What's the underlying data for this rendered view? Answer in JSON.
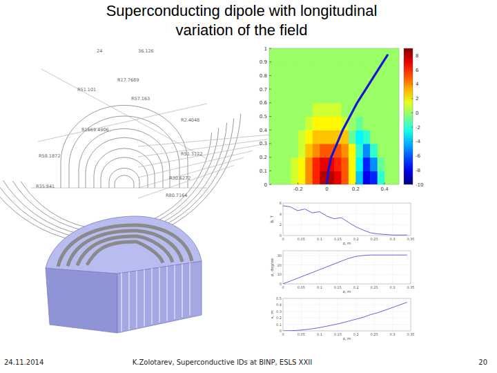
{
  "title": "Superconducting dipole with longitudinal variation of the field",
  "footer": {
    "date": "24.11.2014",
    "author": "K.Zolotarev, Superconductive IDs at BINP, ESLS XXII",
    "page": "20"
  },
  "drawing_labels": [
    "24",
    "36.126",
    "R17.7689",
    "R51.101",
    "R57.163",
    "R1669.4906",
    "R2.4048",
    "R58.1872",
    "R51.3122",
    "R30.6272",
    "R35.841",
    "R80.7164"
  ],
  "chart_data": [
    {
      "type": "heatmap",
      "xlim": [
        -0.4,
        0.5
      ],
      "ylim": [
        0,
        1
      ],
      "xticks": [
        -0.2,
        0,
        0.2,
        0.4
      ],
      "yticks": [
        0,
        0.1,
        0.2,
        0.3,
        0.4,
        0.5,
        0.6,
        0.7,
        0.8,
        0.9,
        1
      ],
      "x_edges": [
        -0.4,
        -0.35,
        -0.3,
        -0.25,
        -0.2,
        -0.15,
        -0.1,
        -0.05,
        0,
        0.05,
        0.1,
        0.15,
        0.2,
        0.25,
        0.3,
        0.35,
        0.4,
        0.45,
        0.5
      ],
      "y_edges": [
        0,
        0.1,
        0.2,
        0.3,
        0.4,
        0.5,
        0.6,
        0.7,
        0.8,
        0.9,
        1
      ],
      "cells": [
        [
          0,
          0,
          0,
          1,
          2,
          4,
          6,
          8,
          8,
          7,
          5,
          2,
          -4,
          -8,
          -7,
          -2,
          0,
          0
        ],
        [
          0,
          0,
          0,
          1,
          2,
          4,
          6,
          7,
          7,
          6,
          5,
          2,
          -3,
          -7,
          -5,
          -1,
          0,
          0
        ],
        [
          0,
          0,
          0,
          0,
          1,
          3,
          4,
          5,
          5,
          5,
          4,
          2,
          -2,
          -5,
          -2,
          0,
          0,
          0
        ],
        [
          0,
          0,
          0,
          0,
          1,
          2,
          3,
          3,
          3,
          3,
          3,
          -1,
          -3,
          -2,
          0,
          0,
          0,
          0
        ],
        [
          0,
          0,
          0,
          0,
          0,
          1,
          2,
          2,
          2,
          2,
          1,
          0,
          -1,
          0,
          0,
          0,
          0,
          0
        ],
        [
          0,
          0,
          0,
          0,
          0,
          0,
          1,
          1,
          1,
          1,
          0,
          0,
          0,
          0,
          0,
          0,
          0,
          0
        ],
        [
          0,
          0,
          0,
          0,
          0,
          0,
          0,
          0,
          0,
          0,
          0,
          0,
          0,
          0,
          0,
          0,
          0,
          0
        ],
        [
          0,
          0,
          0,
          0,
          0,
          0,
          0,
          0,
          0,
          0,
          0,
          0,
          0,
          0,
          0,
          0,
          0,
          0
        ],
        [
          0,
          0,
          0,
          0,
          0,
          0,
          0,
          0,
          0,
          0,
          0,
          0,
          0,
          0,
          0,
          0,
          0,
          0
        ],
        [
          0,
          0,
          0,
          0,
          0,
          0,
          0,
          0,
          0,
          0,
          0,
          0,
          0,
          0,
          0,
          0,
          0,
          0
        ]
      ],
      "colorbar": {
        "range": [
          -10,
          9
        ],
        "ticks": [
          8,
          6,
          4,
          2,
          0,
          -2,
          -4,
          -6,
          -8,
          -10
        ]
      },
      "trajectory": {
        "color": "#1414d8",
        "x": [
          0,
          0.01,
          0.03,
          0.07,
          0.11,
          0.16,
          0.21,
          0.27,
          0.33,
          0.39,
          0.42
        ],
        "y": [
          0,
          0.1,
          0.2,
          0.3,
          0.4,
          0.5,
          0.6,
          0.7,
          0.8,
          0.9,
          0.95
        ]
      }
    },
    {
      "type": "line",
      "x_label": "z, m",
      "y_label": "B, T",
      "color": "#5050d8",
      "grid": true,
      "xlim": [
        0,
        0.35
      ],
      "xticks": [
        0,
        0.05,
        0.1,
        0.15,
        0.2,
        0.25,
        0.3,
        0.35
      ],
      "ylim": [
        0,
        6
      ],
      "yticks": [
        0,
        2,
        4,
        6
      ],
      "x": [
        0,
        0.02,
        0.04,
        0.06,
        0.08,
        0.1,
        0.12,
        0.14,
        0.16,
        0.18,
        0.2,
        0.22,
        0.24,
        0.26,
        0.28,
        0.3,
        0.32,
        0.34
      ],
      "values": [
        5.5,
        5.3,
        4.6,
        4.9,
        4.2,
        4.4,
        3.6,
        3.1,
        3.3,
        2.4,
        1.6,
        1.0,
        0.5,
        0.3,
        0.2,
        0.1,
        0.1,
        0.1
      ]
    },
    {
      "type": "line",
      "x_label": "z, m",
      "y_label": "α, degree",
      "color": "#5050d8",
      "grid": true,
      "xlim": [
        0,
        0.35
      ],
      "xticks": [
        0,
        0.05,
        0.1,
        0.15,
        0.2,
        0.25,
        0.3,
        0.35
      ],
      "ylim": [
        0,
        35
      ],
      "yticks": [
        0,
        10,
        20,
        30
      ],
      "x": [
        0,
        0.02,
        0.04,
        0.06,
        0.08,
        0.1,
        0.12,
        0.14,
        0.16,
        0.18,
        0.2,
        0.22,
        0.24,
        0.26,
        0.28,
        0.3,
        0.32,
        0.34
      ],
      "values": [
        0,
        3,
        6,
        9,
        12,
        15,
        18,
        21,
        24,
        27,
        29,
        30,
        30.5,
        30.5,
        30.5,
        30.5,
        30.5,
        30.5
      ]
    },
    {
      "type": "line",
      "x_label": "z, m",
      "y_label": "x, m",
      "color": "#5050d8",
      "grid": true,
      "xlim": [
        0,
        0.35
      ],
      "xticks": [
        0,
        0.05,
        0.1,
        0.15,
        0.2,
        0.25,
        0.3,
        0.35
      ],
      "ylim": [
        0,
        0.5
      ],
      "yticks": [
        0,
        0.1,
        0.2,
        0.3,
        0.4,
        0.5
      ],
      "x": [
        0,
        0.02,
        0.04,
        0.06,
        0.08,
        0.1,
        0.12,
        0.14,
        0.16,
        0.18,
        0.2,
        0.22,
        0.24,
        0.26,
        0.28,
        0.3,
        0.32,
        0.34
      ],
      "values": [
        0,
        0.002,
        0.008,
        0.018,
        0.032,
        0.05,
        0.072,
        0.095,
        0.12,
        0.15,
        0.18,
        0.21,
        0.25,
        0.28,
        0.32,
        0.36,
        0.4,
        0.44
      ]
    }
  ]
}
